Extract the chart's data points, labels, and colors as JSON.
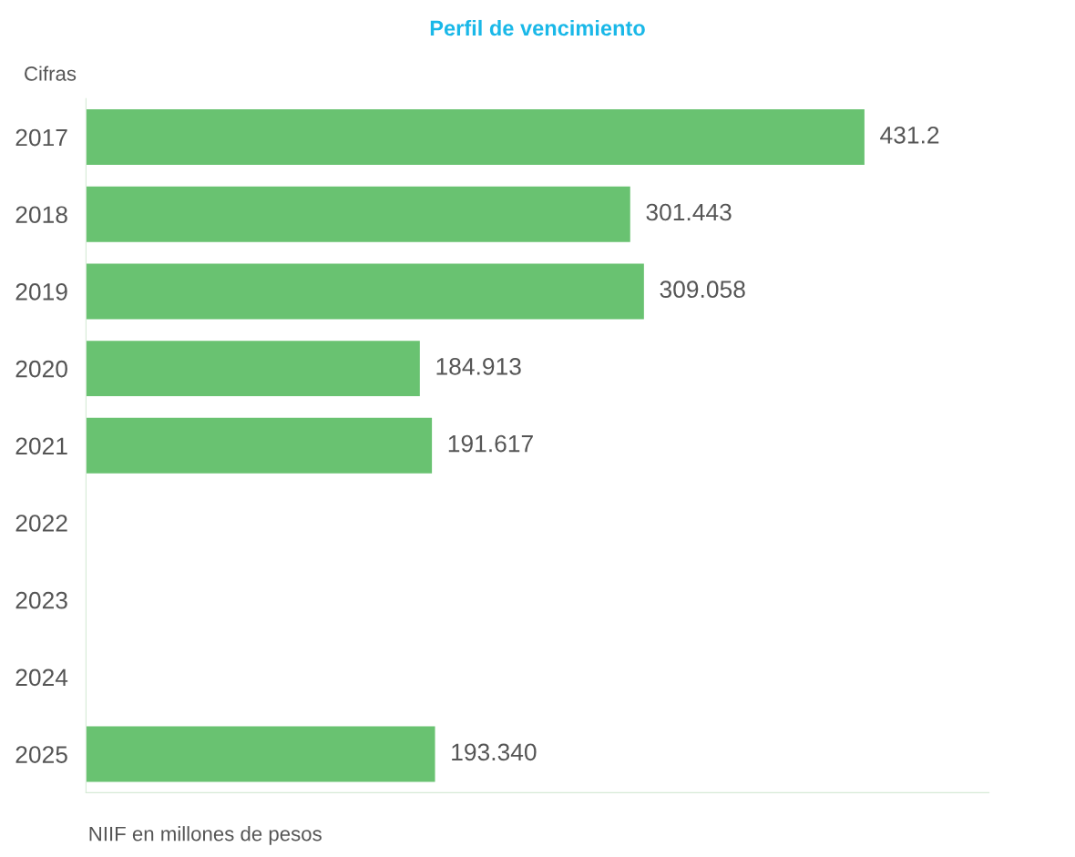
{
  "chart_data": {
    "type": "bar",
    "orientation": "horizontal",
    "title": "Perfil de vencimiento",
    "categories": [
      "2017",
      "2018",
      "2019",
      "2020",
      "2021",
      "2022",
      "2023",
      "2024",
      "2025"
    ],
    "values": [
      431.2,
      301.443,
      309.058,
      184.913,
      191.617,
      null,
      null,
      null,
      193.34
    ],
    "value_labels": [
      "431.2",
      "301.443",
      "309.058",
      "184.913",
      "191.617",
      null,
      null,
      null,
      "193.340"
    ],
    "color": "#69c271",
    "grid": false,
    "legend": false,
    "annotations": [
      "Cifras",
      "NIIF en millones de pesos"
    ]
  }
}
